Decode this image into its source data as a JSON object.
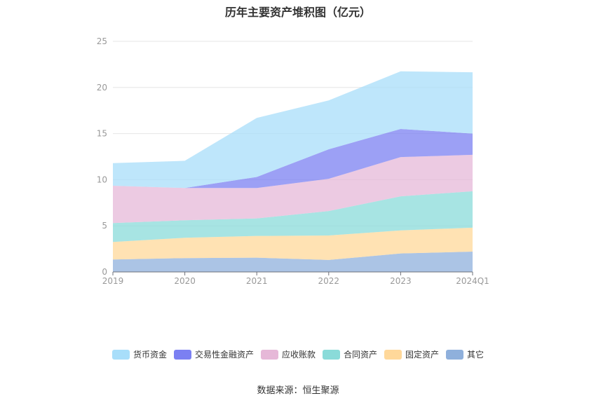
{
  "title": "历年主要资产堆积图（亿元）",
  "source": "数据来源：恒生聚源",
  "chart_data": {
    "type": "area",
    "stacked": true,
    "title": "历年主要资产堆积图（亿元）",
    "x": [
      "2019",
      "2020",
      "2021",
      "2022",
      "2023",
      "2024Q1"
    ],
    "ylim": [
      0,
      25
    ],
    "yticks": [
      0,
      5,
      10,
      15,
      20,
      25
    ],
    "grid": true,
    "legend_position": "bottom",
    "series": [
      {
        "name": "其它",
        "color": "#8fb0dc",
        "values": [
          1.35,
          1.5,
          1.55,
          1.3,
          2.0,
          2.2
        ]
      },
      {
        "name": "固定资产",
        "color": "#ffd89a",
        "values": [
          1.9,
          2.2,
          2.35,
          2.65,
          2.5,
          2.6
        ]
      },
      {
        "name": "合同资产",
        "color": "#8adbd9",
        "values": [
          2.05,
          1.9,
          1.9,
          2.65,
          3.7,
          3.95
        ]
      },
      {
        "name": "应收账款",
        "color": "#e6b8d8",
        "values": [
          4.05,
          3.5,
          3.3,
          3.5,
          4.25,
          3.95
        ]
      },
      {
        "name": "交易性金融资产",
        "color": "#7b80f2",
        "values": [
          0.0,
          0.0,
          1.2,
          3.2,
          3.05,
          2.3
        ]
      },
      {
        "name": "货币资金",
        "color": "#a8defa",
        "values": [
          2.45,
          2.95,
          6.4,
          5.3,
          6.25,
          6.65
        ]
      }
    ],
    "legend_order": [
      "货币资金",
      "交易性金融资产",
      "应收账款",
      "合同资产",
      "固定资产",
      "其它"
    ]
  }
}
